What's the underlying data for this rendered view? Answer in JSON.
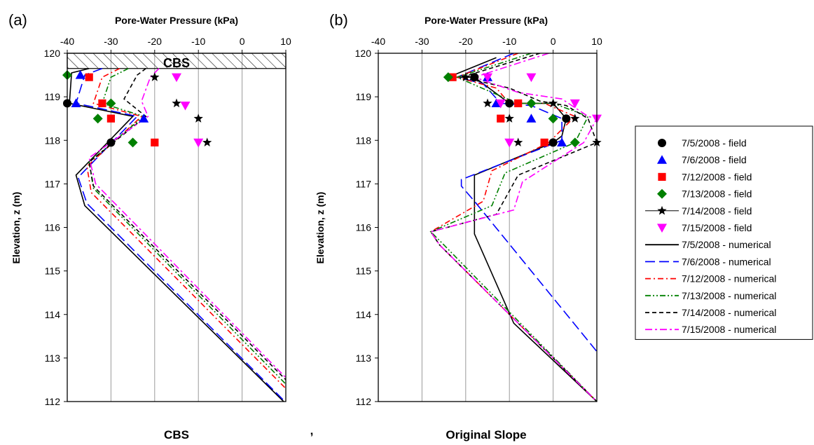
{
  "colors": {
    "7/5/2008": "#000000",
    "7/6/2008": "#0000ff",
    "7/12/2008": "#ff0000",
    "7/13/2008": "#008000",
    "7/14/2008": "#000000",
    "7/15/2008": "#ff00ff"
  },
  "chart_data": [
    {
      "type": "line",
      "panel_label": "(a)",
      "caption": "CBS",
      "xlabel": "Pore-Water Pressure (kPa)",
      "ylabel": "Elevation, z (m)",
      "xlim": [
        -40,
        10
      ],
      "ylim": [
        112,
        120
      ],
      "xticks": [
        "-40",
        "-30",
        "-20",
        "-10",
        "0",
        "10"
      ],
      "yticks": [
        "112",
        "113",
        "114",
        "115",
        "116",
        "117",
        "118",
        "119",
        "120"
      ],
      "grid": "vertical",
      "annotation": "CBS",
      "cover_layer": [
        119.65,
        120
      ],
      "field": [
        {
          "name": "7/5/2008 - field",
          "marker": "circle",
          "points": [
            [
              -40,
              118.85
            ],
            [
              -30,
              117.95
            ]
          ]
        },
        {
          "name": "7/6/2008 - field",
          "marker": "triangle-up",
          "points": [
            [
              -37,
              119.5
            ],
            [
              -38,
              118.85
            ],
            [
              -22.5,
              118.5
            ]
          ]
        },
        {
          "name": "7/12/2008 - field",
          "marker": "square",
          "points": [
            [
              -35,
              119.45
            ],
            [
              -32,
              118.85
            ],
            [
              -30,
              118.5
            ],
            [
              -20,
              117.95
            ]
          ]
        },
        {
          "name": "7/13/2008 - field",
          "marker": "diamond",
          "points": [
            [
              -40,
              119.5
            ],
            [
              -30,
              118.85
            ],
            [
              -33,
              118.5
            ],
            [
              -25,
              117.95
            ]
          ]
        },
        {
          "name": "7/14/2008 - field",
          "marker": "star",
          "points": [
            [
              -20,
              119.45
            ],
            [
              -15,
              118.85
            ],
            [
              -10,
              118.5
            ],
            [
              -8,
              117.95
            ]
          ]
        },
        {
          "name": "7/15/2008 - field",
          "marker": "triangle-down",
          "points": [
            [
              -15,
              119.45
            ],
            [
              -13,
              118.8
            ],
            [
              -10,
              117.95
            ]
          ]
        }
      ],
      "numerical": [
        {
          "name": "7/5/2008 - numerical",
          "dash": "solid",
          "points": [
            [
              -35,
              119.65
            ],
            [
              -39,
              119.55
            ],
            [
              -39.5,
              118.85
            ],
            [
              -25,
              118.55
            ],
            [
              -38,
              117.2
            ],
            [
              -36,
              116.5
            ],
            [
              9.5,
              112
            ]
          ]
        },
        {
          "name": "7/6/2008 - numerical",
          "dash": "long",
          "points": [
            [
              -32,
              119.65
            ],
            [
              -36,
              119.5
            ],
            [
              -38,
              118.85
            ],
            [
              -24,
              118.55
            ],
            [
              -37.5,
              117.15
            ],
            [
              -35.5,
              116.55
            ],
            [
              9.8,
              112
            ]
          ]
        },
        {
          "name": "7/12/2008 - numerical",
          "dash": "dashdot",
          "points": [
            [
              -28,
              119.65
            ],
            [
              -32,
              119.45
            ],
            [
              -34,
              118.85
            ],
            [
              -23,
              118.55
            ],
            [
              -35.5,
              117.4
            ],
            [
              -34.5,
              116.8
            ],
            [
              10,
              112.3
            ]
          ]
        },
        {
          "name": "7/13/2008 - numerical",
          "dash": "dashdotdot",
          "points": [
            [
              -26,
              119.65
            ],
            [
              -30,
              119.45
            ],
            [
              -32,
              118.85
            ],
            [
              -22.5,
              118.55
            ],
            [
              -35,
              117.5
            ],
            [
              -34,
              116.9
            ],
            [
              10,
              112.4
            ]
          ]
        },
        {
          "name": "7/14/2008 - numerical",
          "dash": "dashed",
          "points": [
            [
              -22,
              119.65
            ],
            [
              -24,
              119.5
            ],
            [
              -27,
              118.95
            ],
            [
              -22,
              118.55
            ],
            [
              -35,
              117.5
            ],
            [
              -34,
              116.95
            ],
            [
              10,
              112.5
            ]
          ]
        },
        {
          "name": "7/15/2008 - numerical",
          "dash": "dashmag",
          "points": [
            [
              -19,
              119.65
            ],
            [
              -21,
              119.45
            ],
            [
              -23,
              118.9
            ],
            [
              -21.5,
              118.55
            ],
            [
              -35,
              117.6
            ],
            [
              -33.5,
              117
            ],
            [
              10,
              112.55
            ]
          ]
        }
      ]
    },
    {
      "type": "line",
      "panel_label": "(b)",
      "caption": "Original Slope",
      "xlabel": "Pore-Water Pressure (kPa)",
      "ylabel": "Elevation, z (m)",
      "xlim": [
        -40,
        10
      ],
      "ylim": [
        112,
        120
      ],
      "xticks": [
        "-40",
        "-30",
        "-20",
        "-10",
        "0",
        "10"
      ],
      "yticks": [
        "112",
        "113",
        "114",
        "115",
        "116",
        "117",
        "118",
        "119",
        "120"
      ],
      "grid": "vertical",
      "field": [
        {
          "name": "7/5/2008 - field",
          "marker": "circle",
          "points": [
            [
              -18,
              119.45
            ],
            [
              -10,
              118.85
            ],
            [
              3,
              118.5
            ],
            [
              0,
              117.95
            ]
          ]
        },
        {
          "name": "7/6/2008 - field",
          "marker": "triangle-up",
          "points": [
            [
              -15,
              119.45
            ],
            [
              -13,
              118.85
            ],
            [
              -5,
              118.5
            ],
            [
              2,
              117.95
            ]
          ]
        },
        {
          "name": "7/12/2008 - field",
          "marker": "square",
          "points": [
            [
              -23,
              119.45
            ],
            [
              -8,
              118.85
            ],
            [
              -12,
              118.5
            ],
            [
              -2,
              117.95
            ]
          ]
        },
        {
          "name": "7/13/2008 - field",
          "marker": "diamond",
          "points": [
            [
              -24,
              119.45
            ],
            [
              -5,
              118.85
            ],
            [
              0,
              118.5
            ],
            [
              5,
              117.95
            ]
          ]
        },
        {
          "name": "7/14/2008 - field",
          "marker": "star",
          "points": [
            [
              -20,
              119.45
            ],
            [
              -15,
              118.85
            ],
            [
              0,
              118.85
            ],
            [
              -10,
              118.5
            ],
            [
              5,
              118.5
            ],
            [
              -8,
              117.95
            ],
            [
              10,
              117.95
            ]
          ]
        },
        {
          "name": "7/15/2008 - field",
          "marker": "triangle-down",
          "points": [
            [
              -15,
              119.45
            ],
            [
              -5,
              119.45
            ],
            [
              -12,
              118.85
            ],
            [
              5,
              118.85
            ],
            [
              10,
              118.5
            ],
            [
              -10,
              117.95
            ]
          ]
        }
      ],
      "numerical": [
        {
          "name": "7/5/2008 - numerical",
          "dash": "solid",
          "points": [
            [
              -13,
              119.9
            ],
            [
              -24,
              119.45
            ],
            [
              -18,
              119.45
            ],
            [
              -10,
              118.85
            ],
            [
              0,
              118.85
            ],
            [
              3,
              118.5
            ],
            [
              2,
              118.1
            ],
            [
              0,
              117.95
            ],
            [
              -18,
              117.2
            ],
            [
              -18,
              115.85
            ],
            [
              -9,
              113.8
            ],
            [
              10,
              112
            ]
          ]
        },
        {
          "name": "7/6/2008 - numerical",
          "dash": "long",
          "points": [
            [
              -9,
              120
            ],
            [
              -22,
              119.45
            ],
            [
              -16,
              119.3
            ],
            [
              -12,
              118.85
            ],
            [
              -5,
              118.8
            ],
            [
              2,
              118.5
            ],
            [
              2,
              118
            ],
            [
              -21,
              117.1
            ],
            [
              -21,
              116.95
            ],
            [
              -18,
              116.6
            ],
            [
              10,
              113.15
            ]
          ]
        },
        {
          "name": "7/12/2008 - numerical",
          "dash": "dashdot",
          "points": [
            [
              -8,
              120
            ],
            [
              -22,
              119.45
            ],
            [
              -13,
              119.2
            ],
            [
              -10,
              118.85
            ],
            [
              -2,
              118.85
            ],
            [
              5,
              118.55
            ],
            [
              -1,
              117.95
            ],
            [
              -14,
              117.3
            ],
            [
              -16,
              116.6
            ],
            [
              -28,
              115.9
            ],
            [
              -26,
              115.6
            ],
            [
              10,
              112
            ]
          ]
        },
        {
          "name": "7/13/2008 - numerical",
          "dash": "dashdotdot",
          "points": [
            [
              -5,
              120
            ],
            [
              -22,
              119.45
            ],
            [
              -14,
              119.1
            ],
            [
              -8,
              118.85
            ],
            [
              0,
              118.85
            ],
            [
              8,
              118.55
            ],
            [
              5,
              117.95
            ],
            [
              -11,
              117.25
            ],
            [
              -14,
              116.5
            ],
            [
              -28,
              115.9
            ],
            [
              -25,
              115.6
            ],
            [
              10,
              112
            ]
          ]
        },
        {
          "name": "7/14/2008 - numerical",
          "dash": "dashed",
          "points": [
            [
              -3,
              120
            ],
            [
              -21,
              119.45
            ],
            [
              -10,
              119.2
            ],
            [
              -3,
              118.9
            ],
            [
              3,
              118.8
            ],
            [
              8,
              118.5
            ],
            [
              10,
              117.95
            ],
            [
              -8,
              117.2
            ],
            [
              -13,
              116.3
            ],
            [
              -28,
              115.9
            ],
            [
              -26,
              115.6
            ],
            [
              10,
              112
            ]
          ]
        },
        {
          "name": "7/15/2008 - numerical",
          "dash": "dashmag",
          "points": [
            [
              -1,
              120
            ],
            [
              -18,
              119.45
            ],
            [
              -8,
              119.1
            ],
            [
              2,
              118.95
            ],
            [
              8,
              118.55
            ],
            [
              10,
              118.5
            ],
            [
              7,
              117.95
            ],
            [
              -7,
              117.05
            ],
            [
              -9,
              116.4
            ],
            [
              -28,
              115.9
            ],
            [
              -26,
              115.6
            ],
            [
              10,
              112
            ]
          ]
        }
      ]
    }
  ],
  "legend": {
    "entries": [
      {
        "label": "7/5/2008 - field",
        "kind": "marker",
        "marker": "circle",
        "color": "#000000"
      },
      {
        "label": "7/6/2008 - field",
        "kind": "marker",
        "marker": "triangle-up",
        "color": "#0000ff"
      },
      {
        "label": "7/12/2008 - field",
        "kind": "marker",
        "marker": "square",
        "color": "#ff0000"
      },
      {
        "label": "7/13/2008 - field",
        "kind": "marker",
        "marker": "diamond",
        "color": "#008000"
      },
      {
        "label": "7/14/2008 - field",
        "kind": "marker-line",
        "marker": "star",
        "color": "#000000"
      },
      {
        "label": "7/15/2008 - field",
        "kind": "marker",
        "marker": "triangle-down",
        "color": "#ff00ff"
      },
      {
        "label": "7/5/2008 - numerical",
        "kind": "line",
        "dash": "solid",
        "color": "#000000"
      },
      {
        "label": "7/6/2008 - numerical",
        "kind": "line",
        "dash": "long",
        "color": "#0000ff"
      },
      {
        "label": "7/12/2008 - numerical",
        "kind": "line",
        "dash": "dashdot",
        "color": "#ff0000"
      },
      {
        "label": "7/13/2008 - numerical",
        "kind": "line",
        "dash": "dashdotdot",
        "color": "#008000"
      },
      {
        "label": "7/14/2008 - numerical",
        "kind": "line",
        "dash": "dashed",
        "color": "#000000"
      },
      {
        "label": "7/15/2008 - numerical",
        "kind": "line",
        "dash": "dashmag",
        "color": "#ff00ff"
      }
    ]
  },
  "separator": ","
}
